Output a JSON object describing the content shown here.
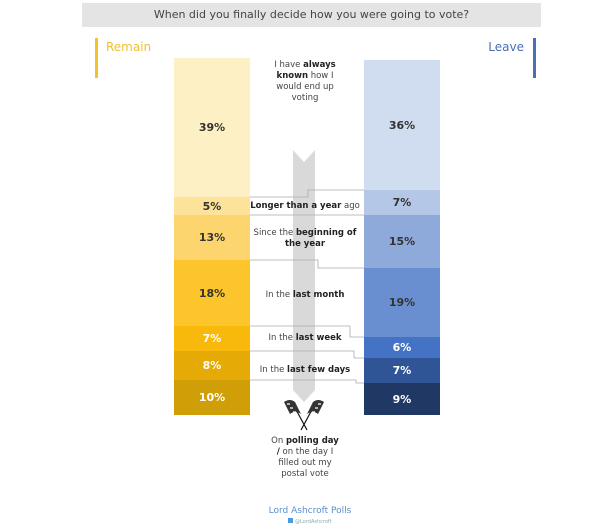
{
  "title": "When did you finally decide how you were going to vote?",
  "footer": {
    "source": "Lord Ashcroft Polls",
    "handle": "@LordAshcroft"
  },
  "chart_data": {
    "type": "bar",
    "title": "When did you finally decide how you were going to vote?",
    "categories": [
      {
        "pre": "I have ",
        "bold": "always known",
        "post": " how I would end up voting"
      },
      {
        "pre": "",
        "bold": "Longer than a year",
        "post": " ago"
      },
      {
        "pre": "Since the ",
        "bold": "beginning of the year",
        "post": ""
      },
      {
        "pre": "In the ",
        "bold": "last month",
        "post": ""
      },
      {
        "pre": "In the ",
        "bold": "last week",
        "post": ""
      },
      {
        "pre": "In the ",
        "bold": "last few days",
        "post": ""
      },
      {
        "pre": "On ",
        "bold": "polling day /",
        "post": " on the day I filled out my postal vote"
      }
    ],
    "series": [
      {
        "name": "Remain",
        "accent": "#f2c12e",
        "values": [
          39,
          5,
          13,
          18,
          7,
          8,
          10
        ],
        "labels": [
          "39%",
          "5%",
          "13%",
          "18%",
          "7%",
          "8%",
          "10%"
        ],
        "colors": [
          "#fdf0c4",
          "#fde39a",
          "#fdd56e",
          "#fcc52c",
          "#f9b90c",
          "#e6aa06",
          "#d09e07"
        ],
        "text_colors": [
          "#333",
          "#333",
          "#333",
          "#333",
          "#fff",
          "#fff",
          "#fff"
        ]
      },
      {
        "name": "Leave",
        "accent": "#4a6fb5",
        "values": [
          36,
          7,
          15,
          19,
          6,
          7,
          9
        ],
        "labels": [
          "36%",
          "7%",
          "15%",
          "19%",
          "6%",
          "7%",
          "9%"
        ],
        "colors": [
          "#d0dcf0",
          "#b4c7e7",
          "#8eaadb",
          "#6a8fd0",
          "#4472c4",
          "#2f5597",
          "#1f3864"
        ],
        "text_colors": [
          "#333",
          "#333",
          "#333",
          "#333",
          "#fff",
          "#fff",
          "#fff"
        ]
      }
    ]
  }
}
